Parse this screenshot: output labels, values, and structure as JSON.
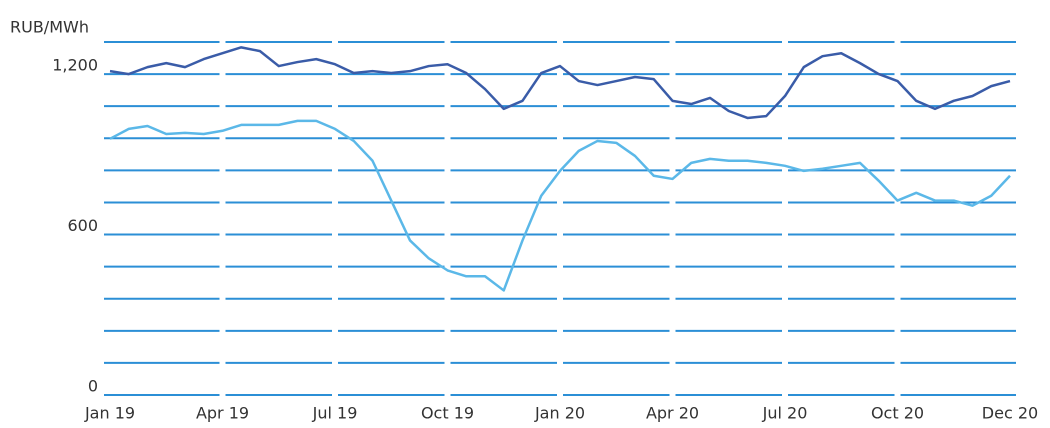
{
  "chart_data": {
    "type": "line",
    "ylabel": "RUB/MWh",
    "x": [
      0,
      0.5,
      1,
      1.5,
      2,
      2.5,
      3,
      3.5,
      4,
      4.5,
      5,
      5.5,
      6,
      6.5,
      7,
      7.5,
      8,
      8.5,
      9,
      9.5,
      10,
      10.5,
      11,
      11.5,
      12,
      12.5,
      13,
      13.5,
      14,
      14.5,
      15,
      15.5,
      16,
      16.5,
      17,
      17.5,
      18,
      18.5,
      19,
      19.5,
      20,
      20.5,
      21,
      21.5,
      22,
      22.5,
      23,
      23.5,
      24
    ],
    "series": [
      {
        "color": "#3a5ca8",
        "values": [
          1211,
          1200,
          1226,
          1241,
          1226,
          1256,
          1278,
          1300,
          1286,
          1230,
          1245,
          1256,
          1237,
          1204,
          1211,
          1204,
          1211,
          1230,
          1237,
          1204,
          1144,
          1070,
          1100,
          1204,
          1230,
          1174,
          1159,
          1174,
          1189,
          1181,
          1100,
          1088,
          1111,
          1062,
          1036,
          1043,
          1118,
          1226,
          1267,
          1278,
          1241,
          1200,
          1174,
          1100,
          1070,
          1100,
          1118,
          1155,
          1174
        ]
      },
      {
        "color": "#5bb8e8",
        "values": [
          958,
          995,
          1006,
          976,
          980,
          976,
          988,
          1010,
          1010,
          1010,
          1025,
          1025,
          995,
          950,
          876,
          727,
          578,
          511,
          466,
          444,
          444,
          391,
          578,
          745,
          838,
          913,
          950,
          943,
          894,
          820,
          808,
          868,
          883,
          876,
          876,
          868,
          857,
          838,
          846,
          857,
          868,
          801,
          727,
          756,
          727,
          727,
          708,
          745,
          820
        ]
      }
    ],
    "xlim": [
      0,
      24
    ],
    "xticks": [
      {
        "value": 0,
        "label": "Jan 19"
      },
      {
        "value": 3,
        "label": "Apr 19"
      },
      {
        "value": 6,
        "label": "Jul 19"
      },
      {
        "value": 9,
        "label": "Oct 19"
      },
      {
        "value": 12,
        "label": "Jan 20"
      },
      {
        "value": 15,
        "label": "Apr 20"
      },
      {
        "value": 18,
        "label": "Jul 20"
      },
      {
        "value": 21,
        "label": "Oct 20"
      },
      {
        "value": 24,
        "label": "Dec 20"
      }
    ],
    "ylim": [
      0,
      1320
    ],
    "yticks": [
      0,
      600,
      {
        "value": 1200,
        "label": "1,200"
      }
    ],
    "gridlines": [
      0,
      120,
      240,
      360,
      480,
      600,
      720,
      840,
      960,
      1080,
      1200,
      1320
    ],
    "grid_color": "#2b8fd6"
  }
}
